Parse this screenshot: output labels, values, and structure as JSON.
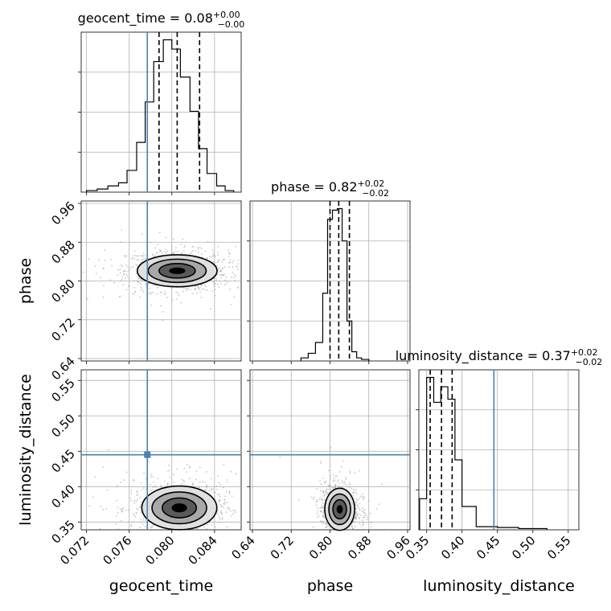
{
  "chart_data": {
    "type": "corner",
    "colors": {
      "truth": "#4682b4",
      "hist": "#000000",
      "grid": "#b0b0b0",
      "scatter": "#9a9a9a",
      "contour_fill": [
        "#e0e0e0",
        "#a8a8a8",
        "#5a5a5a",
        "#000000"
      ]
    },
    "parameters": [
      {
        "name": "geocent_time",
        "xlabel": "geocent_time",
        "title": {
          "main": "geocent_time = 0.08",
          "sup": "+0.00",
          "sub": "−0.00"
        },
        "range": [
          0.0715,
          0.0865
        ],
        "ticks": [
          0.072,
          0.076,
          0.08,
          0.084
        ],
        "tick_labels": [
          "0.072",
          "0.076",
          "0.080",
          "0.084"
        ],
        "truth": 0.0777,
        "quantiles": [
          0.0788,
          0.0805,
          0.0826
        ],
        "hist": {
          "edges": [
            0.072,
            0.073,
            0.074,
            0.075,
            0.0758,
            0.0767,
            0.0775,
            0.0783,
            0.0792,
            0.08,
            0.0808,
            0.0817,
            0.0825,
            0.0833,
            0.0842,
            0.085,
            0.0858
          ],
          "counts": [
            0.01,
            0.02,
            0.04,
            0.06,
            0.14,
            0.32,
            0.58,
            0.84,
            0.98,
            0.92,
            0.74,
            0.52,
            0.28,
            0.12,
            0.04,
            0.01
          ]
        }
      },
      {
        "name": "phase",
        "xlabel": "phase",
        "ylabel": "phase",
        "title": {
          "main": "phase = 0.82",
          "sup": "+0.02",
          "sub": "−0.02"
        },
        "range": [
          0.635,
          0.965
        ],
        "ticks": [
          0.64,
          0.72,
          0.8,
          0.88,
          0.96
        ],
        "tick_labels": [
          "0.64",
          "0.72",
          "0.80",
          "0.88",
          "0.96"
        ],
        "quantiles": [
          0.8,
          0.818,
          0.84
        ],
        "hist": {
          "edges": [
            0.74,
            0.755,
            0.77,
            0.785,
            0.795,
            0.805,
            0.815,
            0.825,
            0.835,
            0.845,
            0.855,
            0.865,
            0.88
          ],
          "counts": [
            0.02,
            0.05,
            0.12,
            0.44,
            0.92,
            0.98,
            0.99,
            0.78,
            0.26,
            0.06,
            0.02,
            0.01
          ]
        }
      },
      {
        "name": "luminosity_distance",
        "xlabel": "luminosity_distance",
        "ylabel": "luminosity_distance",
        "title": {
          "main": "luminosity_distance = 0.37",
          "sup": "+0.02",
          "sub": "−0.02"
        },
        "range": [
          0.339,
          0.565
        ],
        "ticks": [
          0.35,
          0.4,
          0.45,
          0.5,
          0.55
        ],
        "tick_labels": [
          "0.35",
          "0.40",
          "0.45",
          "0.50",
          "0.55"
        ],
        "truth": 0.445,
        "quantiles": [
          0.355,
          0.371,
          0.386
        ],
        "hist": {
          "edges": [
            0.34,
            0.35,
            0.36,
            0.37,
            0.38,
            0.39,
            0.4,
            0.42,
            0.45,
            0.48,
            0.52
          ],
          "counts": [
            0.2,
            0.98,
            0.82,
            0.92,
            0.84,
            0.45,
            0.15,
            0.02,
            0.015,
            0.008
          ]
        }
      }
    ],
    "pairs": [
      {
        "x": "geocent_time",
        "y": "phase",
        "center": [
          0.0805,
          0.821
        ],
        "spread": [
          0.0017,
          0.015
        ],
        "truth_x": 0.0777
      },
      {
        "x": "geocent_time",
        "y": "luminosity_distance",
        "center": [
          0.0807,
          0.37
        ],
        "spread": [
          0.0016,
          0.014
        ],
        "truth_x": 0.0777,
        "truth_y": 0.445
      },
      {
        "x": "phase",
        "y": "luminosity_distance",
        "center": [
          0.82,
          0.368
        ],
        "spread": [
          0.014,
          0.0135
        ],
        "truth_y": 0.445
      }
    ],
    "grid": true
  }
}
